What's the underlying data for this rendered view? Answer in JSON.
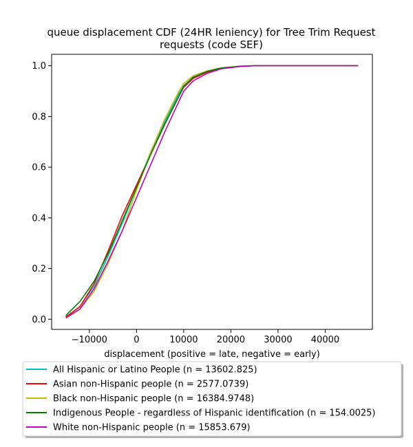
{
  "chart_data": {
    "type": "line",
    "title_lines": [
      "queue displacement CDF (24HR leniency) for Tree Trim Request",
      "requests (code SEF)"
    ],
    "xlabel": "displacement (positive = late, negative = early)",
    "ylabel": "",
    "xlim": [
      -18000,
      50000
    ],
    "ylim": [
      -0.04,
      1.045
    ],
    "x_ticks": [
      -10000,
      0,
      10000,
      20000,
      30000,
      40000
    ],
    "x_tick_labels": [
      "−10000",
      "0",
      "10000",
      "20000",
      "30000",
      "40000"
    ],
    "y_ticks": [
      0.0,
      0.2,
      0.4,
      0.6,
      0.8,
      1.0
    ],
    "y_tick_labels": [
      "0.0",
      "0.2",
      "0.4",
      "0.6",
      "0.8",
      "1.0"
    ],
    "grid": false,
    "legend_placement": "below-plot",
    "series": [
      {
        "name": "All Hispanic or Latino People (n = 13602.825)",
        "color": "#00bfbf",
        "x": [
          -15000,
          -12000,
          -9000,
          -6000,
          -3000,
          0,
          3000,
          6000,
          9000,
          10000,
          12000,
          15000,
          18000,
          22000,
          25000,
          30000,
          40000,
          47000
        ],
        "y": [
          0.01,
          0.05,
          0.13,
          0.25,
          0.38,
          0.52,
          0.66,
          0.78,
          0.89,
          0.92,
          0.95,
          0.975,
          0.99,
          0.998,
          1.0,
          1.0,
          1.0,
          1.0
        ]
      },
      {
        "name": "Asian non-Hispanic people (n = 2577.0739)",
        "color": "#ff0000",
        "x": [
          -15000,
          -12000,
          -9000,
          -6000,
          -3000,
          0,
          3000,
          6000,
          9000,
          10000,
          12000,
          15000,
          18000,
          22000,
          25000,
          30000,
          40000,
          47000
        ],
        "y": [
          0.008,
          0.05,
          0.14,
          0.27,
          0.41,
          0.53,
          0.65,
          0.77,
          0.88,
          0.915,
          0.95,
          0.975,
          0.99,
          0.998,
          1.0,
          1.0,
          1.0,
          1.0
        ]
      },
      {
        "name": "Black non-Hispanic people (n = 16384.9748)",
        "color": "#bfbf00",
        "x": [
          -15000,
          -12000,
          -9000,
          -6000,
          -3000,
          0,
          3000,
          6000,
          9000,
          10000,
          12000,
          15000,
          18000,
          22000,
          25000,
          30000,
          40000,
          47000
        ],
        "y": [
          0.005,
          0.04,
          0.11,
          0.22,
          0.35,
          0.51,
          0.66,
          0.79,
          0.9,
          0.93,
          0.96,
          0.98,
          0.992,
          0.999,
          1.0,
          1.0,
          1.0,
          1.0
        ]
      },
      {
        "name": "Indigenous People - regardless of Hispanic identification (n = 154.0025)",
        "color": "#008000",
        "x": [
          -15000,
          -12000,
          -9000,
          -6000,
          -3000,
          0,
          3000,
          6000,
          9000,
          10000,
          12000,
          15000,
          18000,
          22000,
          25000,
          30000,
          40000,
          47000
        ],
        "y": [
          0.015,
          0.07,
          0.15,
          0.26,
          0.39,
          0.52,
          0.65,
          0.77,
          0.88,
          0.92,
          0.955,
          0.978,
          0.991,
          0.998,
          1.0,
          1.0,
          1.0,
          1.0
        ]
      },
      {
        "name": "White non-Hispanic people (n = 15853.679)",
        "color": "#bf00bf",
        "x": [
          -15000,
          -12000,
          -9000,
          -6000,
          -3000,
          0,
          3000,
          6000,
          9000,
          10000,
          12000,
          15000,
          18000,
          22000,
          25000,
          30000,
          40000,
          47000
        ],
        "y": [
          0.005,
          0.04,
          0.12,
          0.23,
          0.35,
          0.48,
          0.61,
          0.74,
          0.86,
          0.9,
          0.94,
          0.97,
          0.988,
          0.997,
          1.0,
          1.0,
          1.0,
          1.0
        ]
      }
    ]
  }
}
